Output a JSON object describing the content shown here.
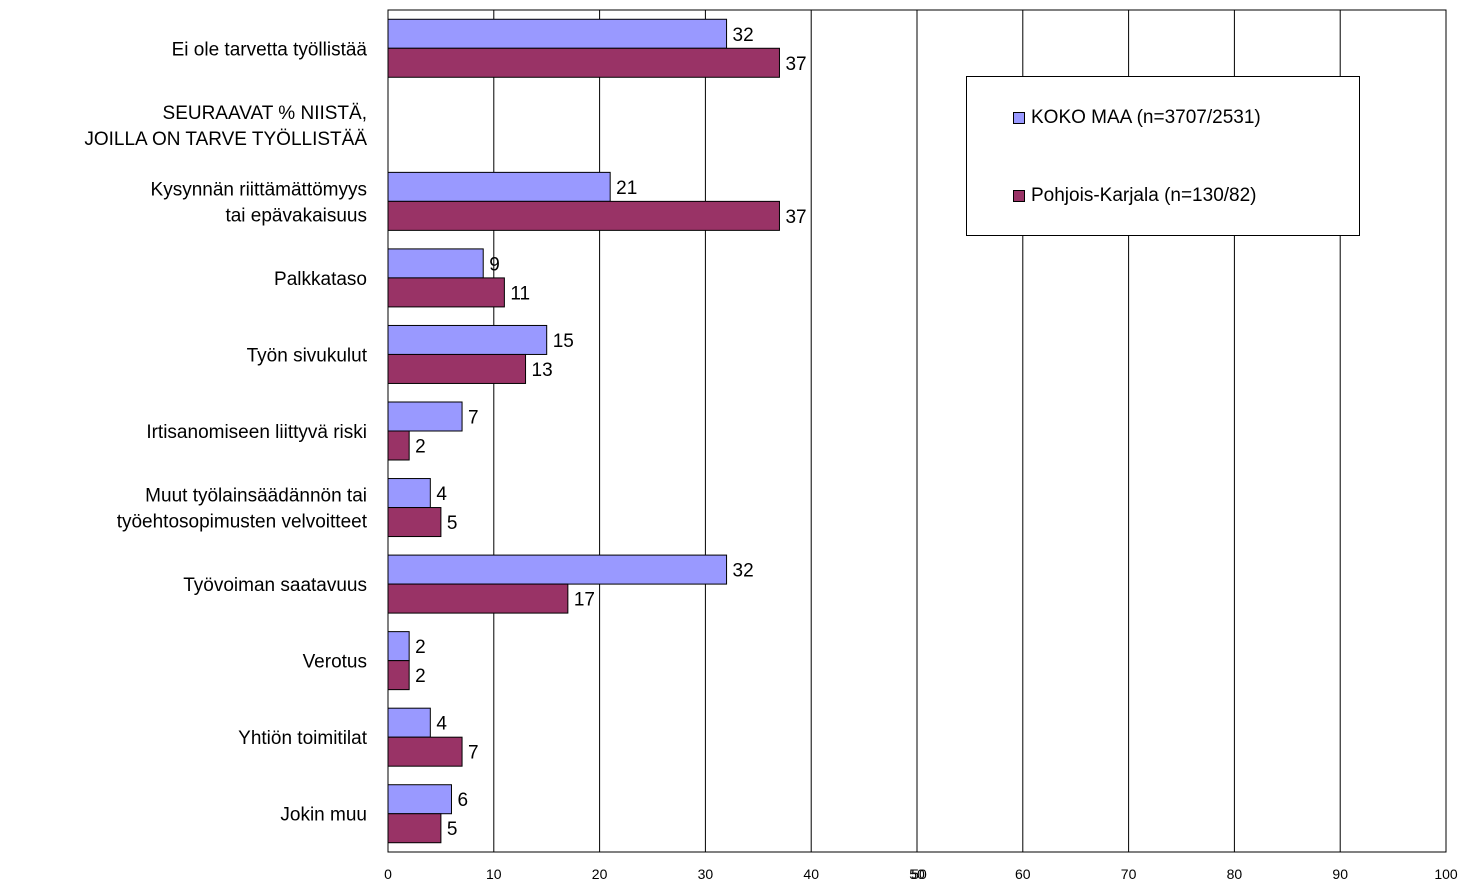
{
  "chart_data": {
    "type": "bar",
    "orientation": "horizontal",
    "categories": [
      [
        "Ei ole tarvetta työllistää"
      ],
      [
        "SEURAAVAT % NIISTÄ,",
        "JOILLA ON TARVE TYÖLLISTÄÄ"
      ],
      [
        "Kysynnän riittämättömyys",
        "tai epävakaisuus"
      ],
      [
        "Palkkataso"
      ],
      [
        "Työn sivukulut"
      ],
      [
        "Irtisanomiseen liittyvä riski"
      ],
      [
        "Muut työlainsäädännön tai",
        "työehtosopimusten velvoitteet"
      ],
      [
        "Työvoiman saatavuus"
      ],
      [
        "Verotus"
      ],
      [
        "Yhtiön toimitilat"
      ],
      [
        "Jokin muu"
      ]
    ],
    "series": [
      {
        "name": "KOKO MAA (n=3707/2531)",
        "color": "#9999FF",
        "values": [
          32,
          null,
          21,
          9,
          15,
          7,
          4,
          32,
          2,
          4,
          6
        ]
      },
      {
        "name": "Pohjois-Karjala (n=130/82)",
        "color": "#993366",
        "values": [
          37,
          null,
          37,
          11,
          13,
          2,
          5,
          17,
          2,
          7,
          5
        ]
      }
    ],
    "xlim": [
      0,
      100
    ],
    "xticks": [
      "0",
      "10",
      "20",
      "30",
      "40",
      "50",
      "60",
      "70",
      "80",
      "90",
      "100"
    ],
    "overlap_tick_label": "50",
    "grid": true,
    "legend_position": "top-right"
  }
}
